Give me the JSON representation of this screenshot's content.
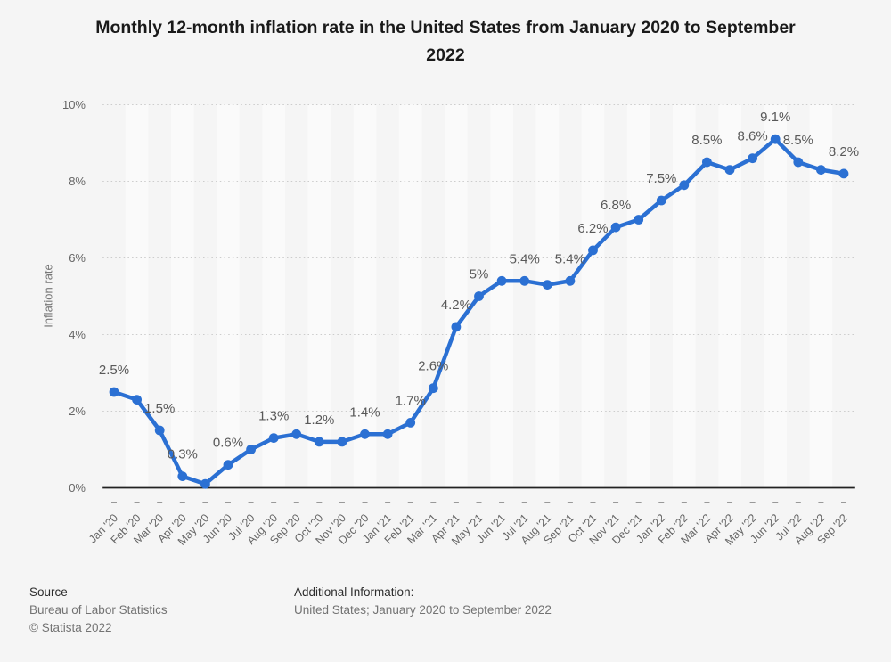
{
  "title_lines": [
    "Monthly 12-month inflation rate in the United States from January 2020 to September",
    "2022"
  ],
  "chart_data": {
    "type": "line",
    "title": "Monthly 12-month inflation rate in the United States from January 2020 to September 2022",
    "xlabel": "",
    "ylabel": "Inflation rate",
    "ylim": [
      0,
      10
    ],
    "ytick_values": [
      0,
      2,
      4,
      6,
      8,
      10
    ],
    "ytick_labels": [
      "0%",
      "2%",
      "4%",
      "6%",
      "8%",
      "10%"
    ],
    "grid": "horizontal-dotted",
    "legend": "none",
    "background_bands": "alternating-vertical",
    "categories": [
      "Jan '20",
      "Feb '20",
      "Mar '20",
      "Apr '20",
      "May '20",
      "Jun '20",
      "Jul '20",
      "Aug '20",
      "Sep '20",
      "Oct '20",
      "Nov '20",
      "Dec '20",
      "Jan '21",
      "Feb '21",
      "Mar '21",
      "Apr '21",
      "May '21",
      "Jun '21",
      "Jul '21",
      "Aug '21",
      "Sep '21",
      "Oct '21",
      "Nov '21",
      "Dec '21",
      "Jan '22",
      "Feb '22",
      "Mar '22",
      "Apr '22",
      "May '22",
      "Jun '22",
      "Jul '22",
      "Aug '22",
      "Sep '22"
    ],
    "series": [
      {
        "name": "Inflation rate",
        "values": [
          2.5,
          2.3,
          1.5,
          0.3,
          0.1,
          0.6,
          1.0,
          1.3,
          1.4,
          1.2,
          1.2,
          1.4,
          1.4,
          1.7,
          2.6,
          4.2,
          5.0,
          5.4,
          5.4,
          5.3,
          5.4,
          6.2,
          6.8,
          7.0,
          7.5,
          7.9,
          8.5,
          8.3,
          8.6,
          9.1,
          8.5,
          8.3,
          8.2
        ],
        "point_labels": [
          "2.5%",
          "",
          "1.5%",
          "0.3%",
          "",
          "0.6%",
          "",
          "1.3%",
          "",
          "1.2%",
          "",
          "1.4%",
          "",
          "1.7%",
          "2.6%",
          "4.2%",
          "5%",
          "",
          "5.4%",
          "",
          "5.4%",
          "6.2%",
          "6.8%",
          "",
          "7.5%",
          "",
          "8.5%",
          "",
          "8.6%",
          "9.1%",
          "8.5%",
          "",
          "8.2%"
        ]
      }
    ]
  },
  "colors": {
    "accent_blue": "#2b70d3",
    "band_light": "#fafafa",
    "page_background": "#f5f5f5",
    "gridline": "#cccccc",
    "axis_line": "#222222",
    "tick_mark": "#999999",
    "axis_text": "#666666",
    "data_label_text": "#595959",
    "title_text": "#1a1a1a"
  },
  "footer": {
    "source_heading": "Source",
    "source_name": "Bureau of Labor Statistics",
    "copyright": "© Statista 2022",
    "additional_heading": "Additional Information:",
    "additional_text": "United States; January 2020 to September 2022"
  }
}
